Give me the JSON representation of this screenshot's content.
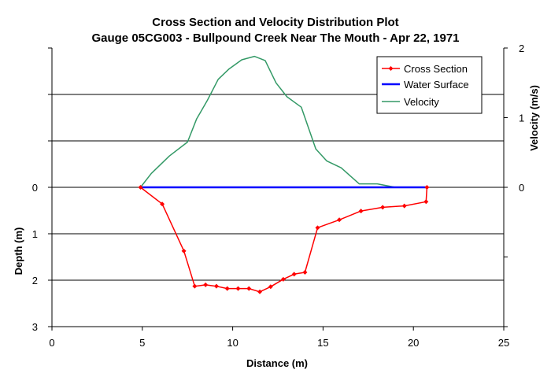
{
  "chart_data": {
    "type": "line",
    "title": "Cross Section and Velocity Distribution Plot",
    "subtitle": "Gauge 05CG003 - Bullpound Creek Near The Mouth - Apr 22, 1971",
    "xlabel": "Distance (m)",
    "ylabel": "Depth (m)",
    "y2label": "Velocity (m/s)",
    "xlim": [
      0,
      25
    ],
    "x_ticks": [
      "0",
      "5",
      "10",
      "15",
      "20",
      "25"
    ],
    "ylim": [
      -3,
      3
    ],
    "y_inverted": true,
    "y_ticks": [
      "0",
      "1",
      "2",
      "3"
    ],
    "y2lim": [
      -2,
      2
    ],
    "y2_ticks": [
      "2",
      "1",
      "0"
    ],
    "gridlines_y": [
      -2,
      -1,
      0,
      1,
      2
    ],
    "legend_position": "top-right",
    "series": [
      {
        "name": "Cross Section",
        "axis": "depth",
        "color": "#ff0000",
        "marker": "diamond",
        "points": [
          [
            4.9,
            0
          ],
          [
            6.1,
            0.36
          ],
          [
            7.3,
            1.37
          ],
          [
            7.9,
            2.13
          ],
          [
            8.5,
            2.1
          ],
          [
            9.1,
            2.13
          ],
          [
            9.7,
            2.18
          ],
          [
            10.3,
            2.18
          ],
          [
            10.9,
            2.18
          ],
          [
            11.5,
            2.25
          ],
          [
            12.1,
            2.14
          ],
          [
            12.8,
            1.98
          ],
          [
            13.4,
            1.87
          ],
          [
            14.0,
            1.83
          ],
          [
            14.7,
            0.87
          ],
          [
            15.9,
            0.7
          ],
          [
            17.1,
            0.51
          ],
          [
            18.3,
            0.43
          ],
          [
            19.5,
            0.4
          ],
          [
            20.7,
            0.31
          ],
          [
            20.75,
            0
          ]
        ]
      },
      {
        "name": "Water Surface",
        "axis": "depth",
        "color": "#0000ff",
        "points": [
          [
            4.9,
            0
          ],
          [
            20.75,
            0
          ]
        ]
      },
      {
        "name": "Velocity",
        "axis": "velocity",
        "color": "#339966",
        "points": [
          [
            4.9,
            0
          ],
          [
            5.5,
            0.2
          ],
          [
            6.5,
            0.45
          ],
          [
            7.5,
            0.65
          ],
          [
            8.0,
            0.98
          ],
          [
            8.6,
            1.25
          ],
          [
            9.2,
            1.55
          ],
          [
            9.8,
            1.7
          ],
          [
            10.5,
            1.83
          ],
          [
            11.2,
            1.88
          ],
          [
            11.8,
            1.82
          ],
          [
            12.4,
            1.5
          ],
          [
            13.0,
            1.3
          ],
          [
            13.8,
            1.15
          ],
          [
            14.2,
            0.85
          ],
          [
            14.6,
            0.55
          ],
          [
            15.2,
            0.38
          ],
          [
            16.0,
            0.28
          ],
          [
            17.0,
            0.05
          ],
          [
            18.0,
            0.05
          ],
          [
            19.0,
            0.0
          ],
          [
            20.75,
            0.0
          ]
        ]
      }
    ]
  },
  "colors": {
    "grid": "#000000",
    "axes": "#000000"
  }
}
